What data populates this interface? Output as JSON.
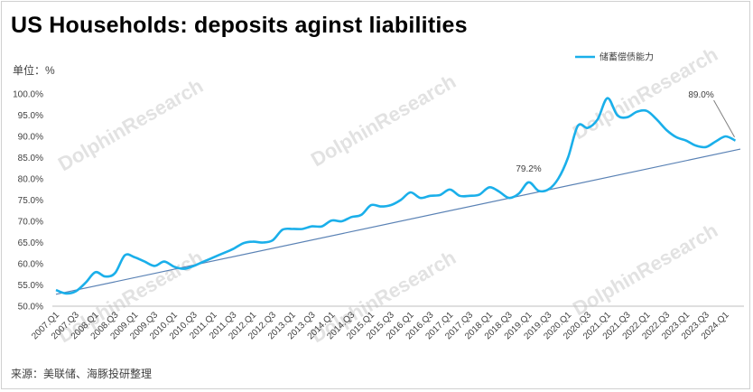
{
  "header": {
    "title": "US Households: deposits aginst liabilities",
    "unit": "单位：%",
    "source": "来源：美联储、海豚投研整理"
  },
  "watermark": {
    "text": "DolphinResearch",
    "cn": "海豚投研"
  },
  "colors": {
    "series": "#1AAFEA",
    "trend": "#5A82B5",
    "axis": "#bfbfbf",
    "text": "#404040"
  },
  "chart_data": {
    "type": "line",
    "categories": [
      "2007-Q1",
      "2007-Q2",
      "2007-Q3",
      "2007-Q4",
      "2008-Q1",
      "2008-Q2",
      "2008-Q3",
      "2008-Q4",
      "2009-Q1",
      "2009-Q2",
      "2009-Q3",
      "2009-Q4",
      "2010-Q1",
      "2010-Q2",
      "2010-Q3",
      "2010-Q4",
      "2011-Q1",
      "2011-Q2",
      "2011-Q3",
      "2011-Q4",
      "2012-Q1",
      "2012-Q2",
      "2012-Q3",
      "2012-Q4",
      "2013-Q1",
      "2013-Q2",
      "2013-Q3",
      "2013-Q4",
      "2014-Q1",
      "2014-Q2",
      "2014-Q3",
      "2014-Q4",
      "2015-Q1",
      "2015-Q2",
      "2015-Q3",
      "2015-Q4",
      "2016-Q1",
      "2016-Q2",
      "2016-Q3",
      "2016-Q4",
      "2017-Q1",
      "2017-Q2",
      "2017-Q3",
      "2017-Q4",
      "2018-Q1",
      "2018-Q2",
      "2018-Q3",
      "2018-Q4",
      "2019-Q1",
      "2019-Q2",
      "2019-Q3",
      "2019-Q4",
      "2020-Q1",
      "2020-Q2",
      "2020-Q3",
      "2020-Q4",
      "2021-Q1",
      "2021-Q2",
      "2021-Q3",
      "2021-Q4",
      "2022-Q1",
      "2022-Q2",
      "2022-Q3",
      "2022-Q4",
      "2023-Q1",
      "2023-Q2",
      "2023-Q3",
      "2023-Q4",
      "2024-Q1",
      "2024-Q2"
    ],
    "tick_labels": [
      "2007-Q1",
      "2007-Q3",
      "2008-Q1",
      "2008-Q3",
      "2009-Q1",
      "2009-Q3",
      "2010-Q1",
      "2010-Q3",
      "2011-Q1",
      "2011-Q3",
      "2012-Q1",
      "2012-Q3",
      "2013-Q1",
      "2013-Q3",
      "2014-Q1",
      "2014-Q3",
      "2015-Q1",
      "2015-Q3",
      "2016-Q1",
      "2016-Q3",
      "2017-Q1",
      "2017-Q3",
      "2018-Q1",
      "2018-Q3",
      "2019-Q1",
      "2019-Q3",
      "2020-Q1",
      "2020-Q3",
      "2021-Q1",
      "2021-Q3",
      "2022-Q1",
      "2022-Q3",
      "2023-Q1",
      "2023-Q3",
      "2024-Q1"
    ],
    "series": [
      {
        "name": "储蓄偿债能力",
        "values": [
          53.8,
          53.0,
          53.5,
          55.5,
          58.0,
          57.0,
          57.8,
          62.0,
          61.5,
          60.5,
          59.5,
          60.5,
          59.3,
          58.8,
          59.5,
          60.5,
          61.5,
          62.5,
          63.5,
          64.8,
          65.2,
          65.0,
          65.5,
          68.0,
          68.2,
          68.2,
          68.8,
          68.8,
          70.2,
          70.0,
          71.0,
          71.5,
          73.8,
          73.5,
          73.8,
          75.0,
          76.8,
          75.5,
          76.0,
          76.2,
          77.5,
          76.0,
          76.0,
          76.3,
          78.0,
          77.0,
          75.5,
          76.5,
          79.2,
          77.2,
          77.5,
          80.0,
          85.0,
          92.5,
          92.0,
          94.0,
          99.0,
          95.0,
          94.5,
          95.8,
          96.0,
          94.0,
          91.5,
          89.8,
          89.0,
          87.8,
          87.5,
          88.8,
          90.0,
          89.0
        ]
      }
    ],
    "trendline": {
      "from": 52.8,
      "to": 87.0
    },
    "annotations": [
      {
        "label": "79.2%",
        "index": 48
      },
      {
        "label": "89.0%",
        "index": 69
      }
    ],
    "y_ticks": [
      "50.0%",
      "55.0%",
      "60.0%",
      "65.0%",
      "70.0%",
      "75.0%",
      "80.0%",
      "85.0%",
      "90.0%",
      "95.0%",
      "100.0%"
    ],
    "ylim": [
      50,
      100
    ],
    "grid": false,
    "legend": "top-right"
  }
}
